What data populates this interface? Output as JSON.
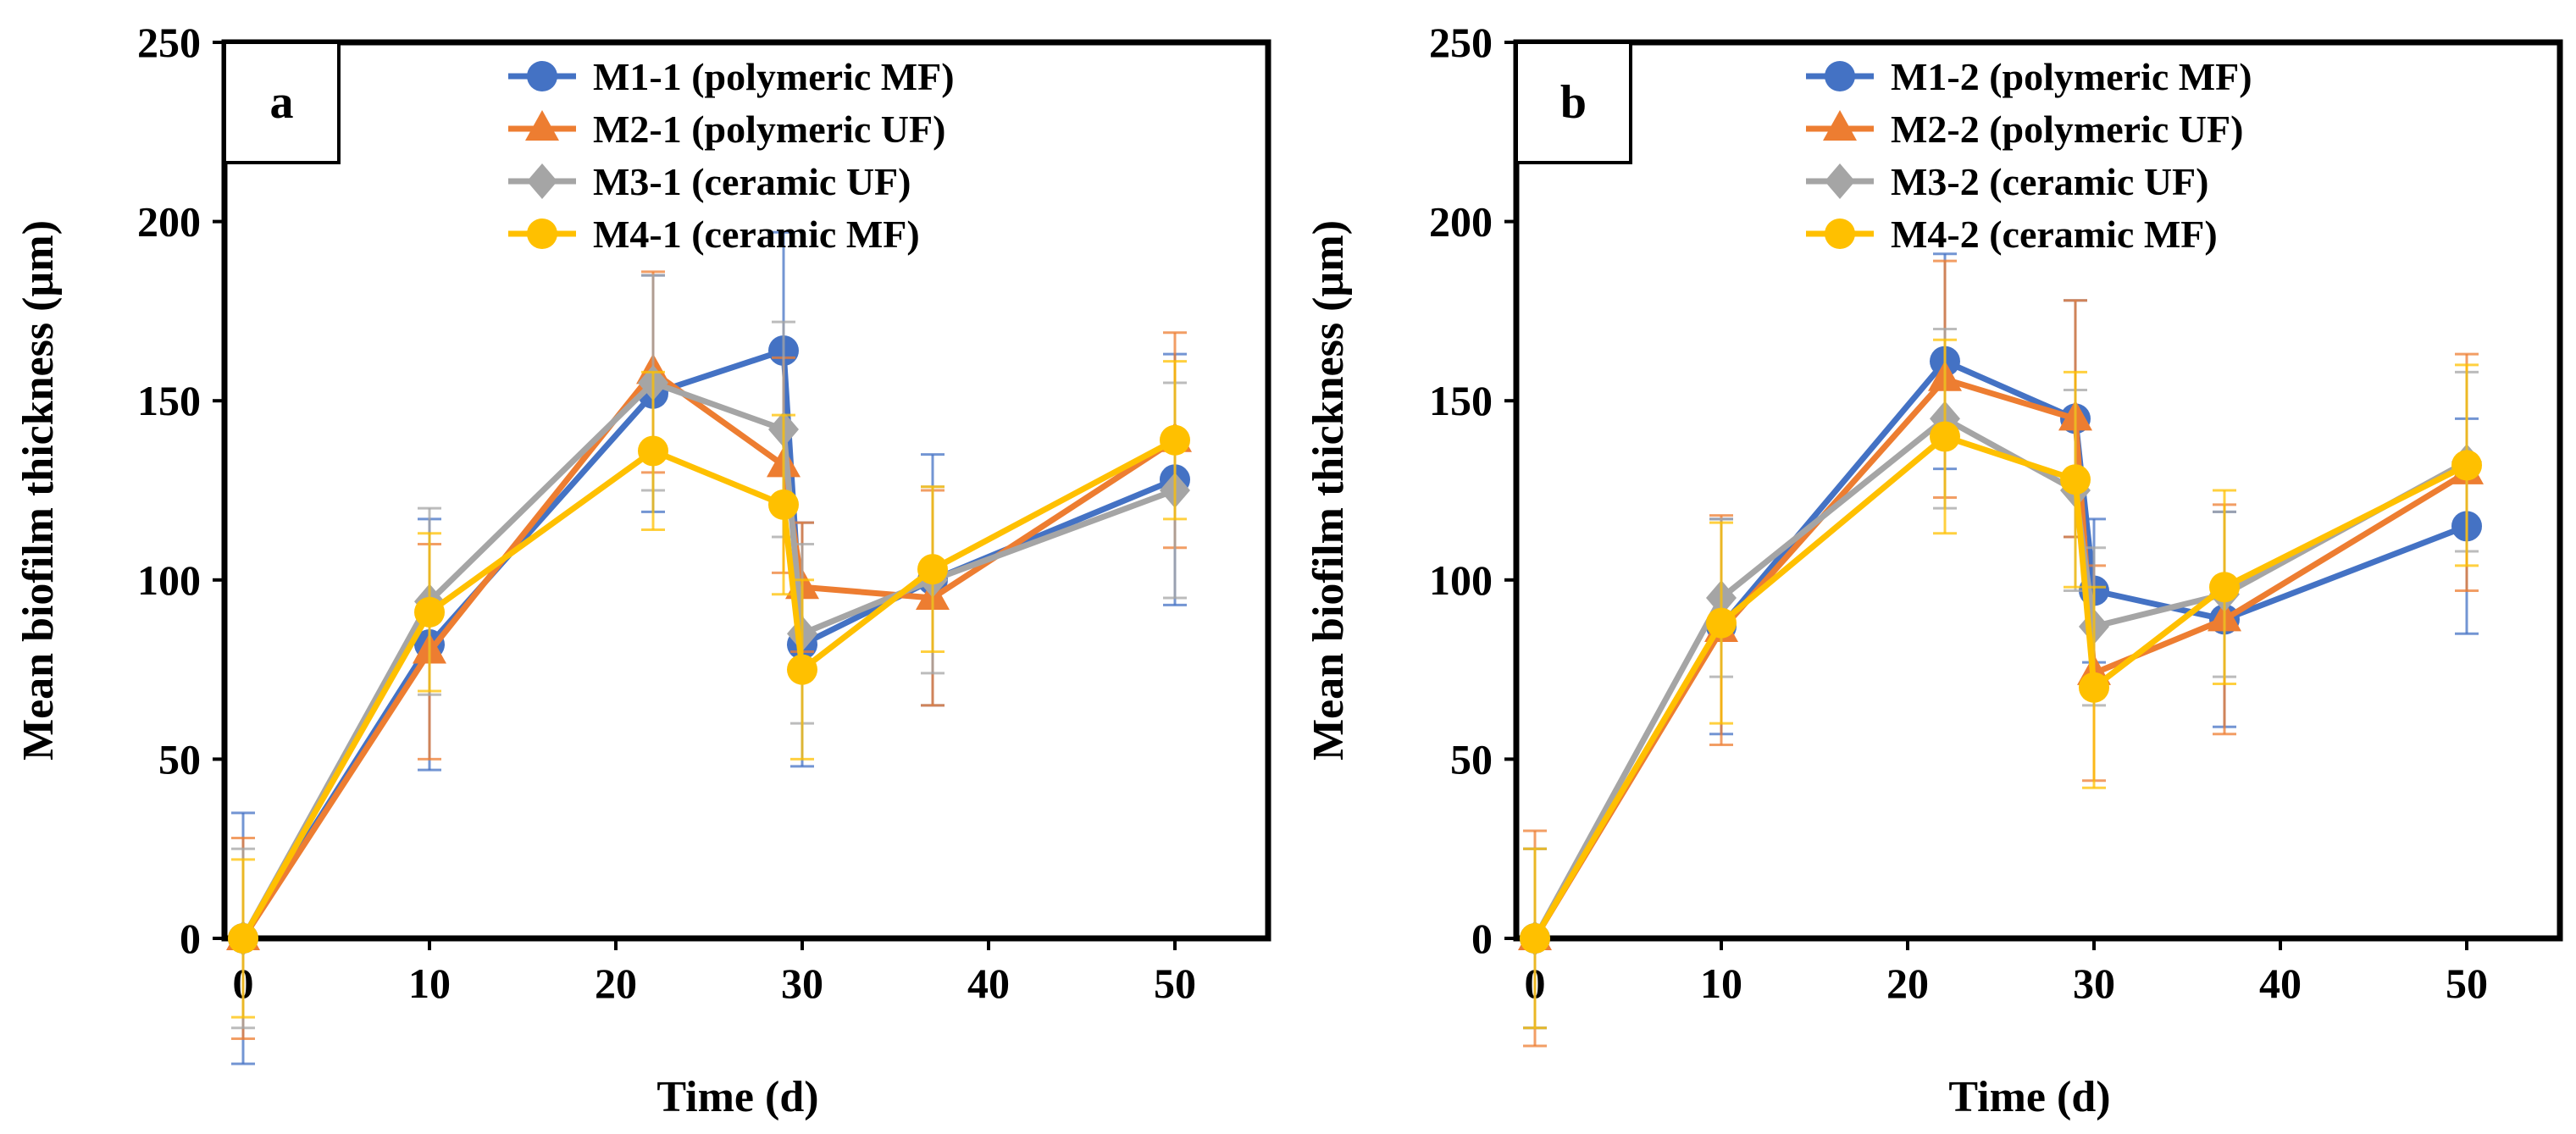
{
  "chart_data": [
    {
      "type": "line",
      "panel_label": "a",
      "title": "",
      "xlabel": "Time (d)",
      "ylabel": "Mean biofilm thickness (µm)",
      "xlim": [
        -1,
        55
      ],
      "ylim": [
        0,
        250
      ],
      "xticks": [
        "0",
        "10",
        "20",
        "30",
        "40",
        "50"
      ],
      "yticks": [
        "0",
        "50",
        "100",
        "150",
        "200",
        "250"
      ],
      "grid": false,
      "legend_position": "top-right",
      "x": [
        0,
        10,
        22,
        29,
        30,
        37,
        50
      ],
      "series": [
        {
          "name": "M1-1 (polymeric MF)",
          "color": "#4472C4",
          "marker": "circle",
          "values": [
            0,
            82,
            152,
            164,
            82,
            100,
            128
          ],
          "errors": [
            35,
            35,
            33,
            33,
            34,
            35,
            35
          ]
        },
        {
          "name": "M2-1 (polymeric UF)",
          "color": "#ED7D31",
          "marker": "triangle",
          "values": [
            0,
            80,
            158,
            132,
            98,
            95,
            139
          ],
          "errors": [
            28,
            30,
            28,
            30,
            18,
            30,
            30
          ]
        },
        {
          "name": "M3-1 (ceramic UF)",
          "color": "#A5A5A5",
          "marker": "diamond",
          "values": [
            0,
            94,
            155,
            142,
            85,
            100,
            125
          ],
          "errors": [
            25,
            26,
            30,
            30,
            25,
            26,
            30
          ]
        },
        {
          "name": "M4-1 (ceramic MF)",
          "color": "#FFC000",
          "marker": "circle",
          "values": [
            0,
            91,
            136,
            121,
            75,
            103,
            139
          ],
          "errors": [
            22,
            22,
            22,
            25,
            25,
            23,
            22
          ]
        }
      ]
    },
    {
      "type": "line",
      "panel_label": "b",
      "title": "",
      "xlabel": "Time (d)",
      "ylabel": "Mean biofilm thickness (µm)",
      "xlim": [
        -1,
        55
      ],
      "ylim": [
        0,
        250
      ],
      "xticks": [
        "0",
        "10",
        "20",
        "30",
        "40",
        "50"
      ],
      "yticks": [
        "0",
        "50",
        "100",
        "150",
        "200",
        "250"
      ],
      "grid": false,
      "legend_position": "top-right",
      "x": [
        0,
        10,
        22,
        29,
        30,
        37,
        50
      ],
      "series": [
        {
          "name": "M1-2 (polymeric MF)",
          "color": "#4472C4",
          "marker": "circle",
          "values": [
            0,
            87,
            161,
            145,
            97,
            89,
            115
          ],
          "errors": [
            25,
            30,
            30,
            33,
            20,
            30,
            30
          ]
        },
        {
          "name": "M2-2 (polymeric UF)",
          "color": "#ED7D31",
          "marker": "triangle",
          "values": [
            0,
            86,
            156,
            145,
            74,
            89,
            130
          ],
          "errors": [
            30,
            32,
            33,
            33,
            30,
            32,
            33
          ]
        },
        {
          "name": "M3-2 (ceramic UF)",
          "color": "#A5A5A5",
          "marker": "diamond",
          "values": [
            0,
            95,
            145,
            125,
            87,
            96,
            133
          ],
          "errors": [
            25,
            22,
            25,
            28,
            22,
            23,
            25
          ]
        },
        {
          "name": "M4-2 (ceramic MF)",
          "color": "#FFC000",
          "marker": "circle",
          "values": [
            0,
            88,
            140,
            128,
            70,
            98,
            132
          ],
          "errors": [
            25,
            28,
            27,
            30,
            28,
            27,
            28
          ]
        }
      ]
    }
  ]
}
